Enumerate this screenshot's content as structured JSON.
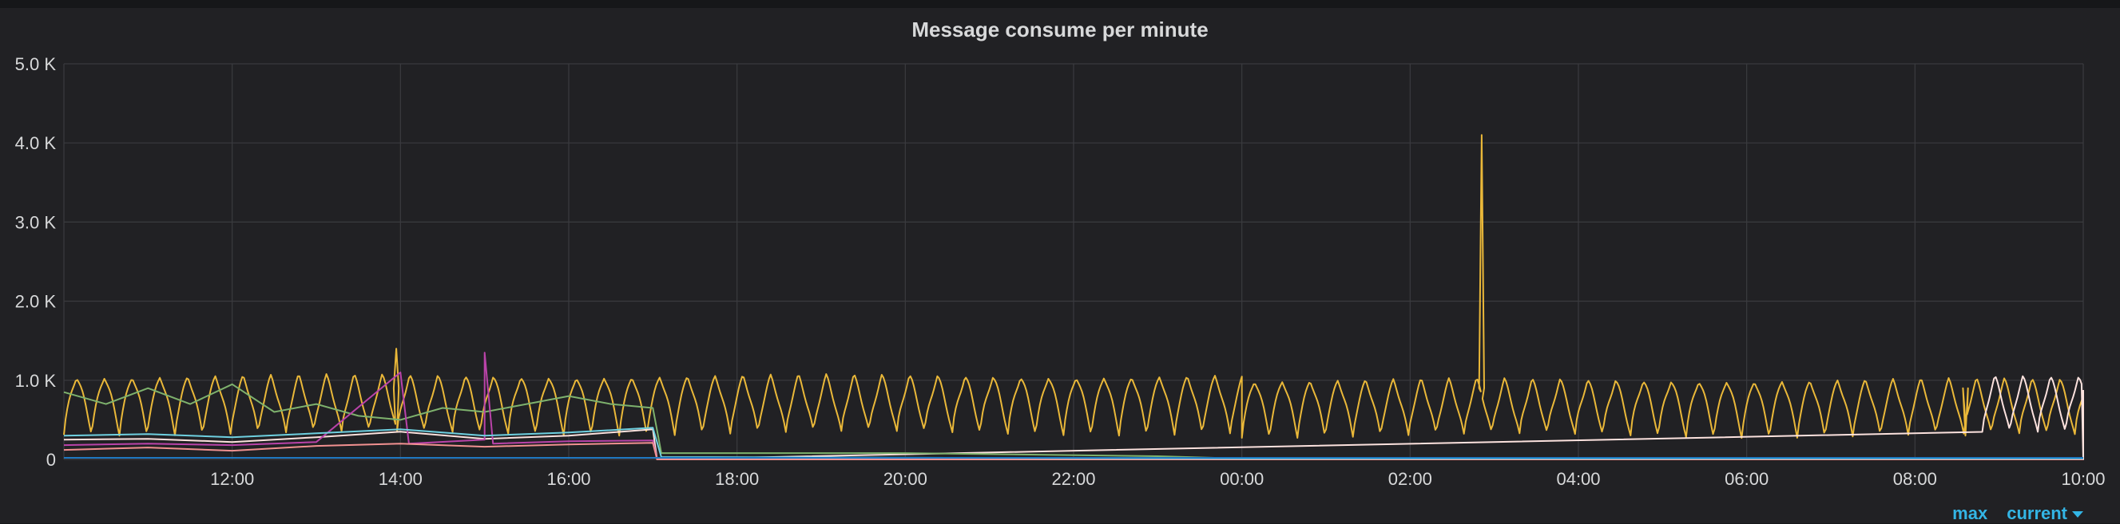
{
  "panel": {
    "title": "Message consume per minute"
  },
  "legend": {
    "col_max": "max",
    "col_current": "current"
  },
  "colors": {
    "background": "#161719",
    "panel": "#212124",
    "grid": "#3a3b3f",
    "text": "#d8d9da",
    "link": "#33b5e5"
  },
  "chart_data": {
    "type": "line",
    "title": "Message consume per minute",
    "xlabel": "",
    "ylabel": "",
    "grid": true,
    "ylim": [
      0,
      5000
    ],
    "xlim": [
      "10:00",
      "10:00"
    ],
    "x_ticks": [
      "12:00",
      "14:00",
      "16:00",
      "18:00",
      "20:00",
      "22:00",
      "00:00",
      "02:00",
      "04:00",
      "06:00",
      "08:00",
      "10:00"
    ],
    "y_ticks": [
      {
        "value": 0,
        "label": "0"
      },
      {
        "value": 1000,
        "label": "1.0 K"
      },
      {
        "value": 2000,
        "label": "2.0 K"
      },
      {
        "value": 3000,
        "label": "3.0 K"
      },
      {
        "value": 4000,
        "label": "4.0 K"
      },
      {
        "value": 5000,
        "label": "5.0 K"
      }
    ],
    "x_hours_start": 10,
    "x_hours_end": 34,
    "series": [
      {
        "color": "#eab839",
        "oscillation": {
          "period_h": 0.33,
          "low": 330,
          "high": 1050,
          "from": 10.0,
          "to": 24.0
        },
        "oscillation_late": {
          "period_h": 0.33,
          "low": 300,
          "high": 1000,
          "from": 24.0,
          "to": 34.0
        },
        "spikes": [
          {
            "x": 26.85,
            "y": 4100
          },
          {
            "x": 13.95,
            "y": 1400
          },
          {
            "x": 32.6,
            "y": 300
          }
        ]
      },
      {
        "color": "#fce2de",
        "oscillation": {
          "period_h": 0.33,
          "low": 320,
          "high": 1030,
          "from": 32.8,
          "to": 34.0
        },
        "points": [
          [
            10.0,
            250
          ],
          [
            11.0,
            260
          ],
          [
            12.0,
            220
          ],
          [
            13.0,
            280
          ],
          [
            14.0,
            350
          ],
          [
            15.0,
            260
          ],
          [
            16.0,
            300
          ],
          [
            17.0,
            380
          ],
          [
            17.05,
            0
          ],
          [
            34.0,
            0
          ]
        ]
      },
      {
        "color": "#7eb26d",
        "points": [
          [
            10.0,
            850
          ],
          [
            10.5,
            700
          ],
          [
            11.0,
            900
          ],
          [
            11.5,
            700
          ],
          [
            12.0,
            950
          ],
          [
            12.5,
            600
          ],
          [
            13.0,
            700
          ],
          [
            13.5,
            550
          ],
          [
            14.0,
            500
          ],
          [
            14.5,
            650
          ],
          [
            15.0,
            600
          ],
          [
            15.5,
            700
          ],
          [
            16.0,
            800
          ],
          [
            16.5,
            700
          ],
          [
            17.0,
            650
          ],
          [
            17.1,
            80
          ],
          [
            20.0,
            80
          ],
          [
            23.0,
            40
          ],
          [
            24.0,
            10
          ],
          [
            34.0,
            10
          ]
        ]
      },
      {
        "color": "#ba43a9",
        "points": [
          [
            10.0,
            180
          ],
          [
            11.0,
            200
          ],
          [
            12.0,
            180
          ],
          [
            13.0,
            220
          ],
          [
            14.0,
            1100
          ],
          [
            14.1,
            200
          ],
          [
            15.0,
            250
          ],
          [
            15.0,
            1350
          ],
          [
            15.1,
            200
          ],
          [
            16.0,
            230
          ],
          [
            17.0,
            240
          ],
          [
            17.05,
            0
          ],
          [
            34.0,
            0
          ]
        ]
      },
      {
        "color": "#f29191",
        "points": [
          [
            10.0,
            120
          ],
          [
            11.0,
            150
          ],
          [
            12.0,
            110
          ],
          [
            13.0,
            170
          ],
          [
            14.0,
            200
          ],
          [
            15.0,
            160
          ],
          [
            16.0,
            190
          ],
          [
            17.0,
            210
          ],
          [
            17.05,
            0
          ],
          [
            34.0,
            0
          ]
        ]
      },
      {
        "color": "#6ed0e0",
        "points": [
          [
            10.0,
            300
          ],
          [
            11.0,
            320
          ],
          [
            12.0,
            280
          ],
          [
            13.0,
            330
          ],
          [
            14.0,
            380
          ],
          [
            15.0,
            300
          ],
          [
            16.0,
            340
          ],
          [
            17.0,
            400
          ],
          [
            17.1,
            30
          ],
          [
            24.0,
            10
          ],
          [
            34.0,
            10
          ]
        ]
      },
      {
        "color": "#1f78c1",
        "points": [
          [
            10.0,
            20
          ],
          [
            34.0,
            20
          ]
        ]
      }
    ]
  }
}
